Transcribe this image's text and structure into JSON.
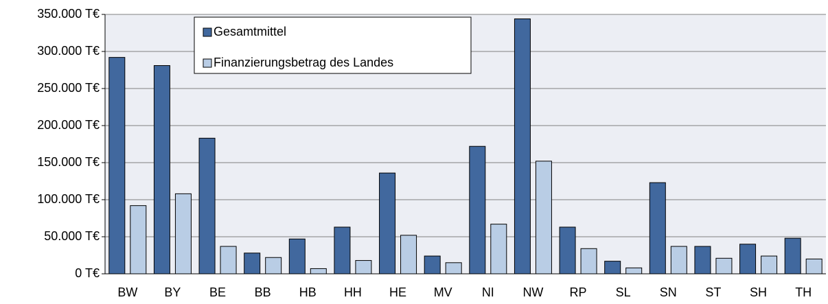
{
  "chart_data": {
    "type": "bar",
    "categories": [
      "BW",
      "BY",
      "BE",
      "BB",
      "HB",
      "HH",
      "HE",
      "MV",
      "NI",
      "NW",
      "RP",
      "SL",
      "SN",
      "ST",
      "SH",
      "TH"
    ],
    "series": [
      {
        "name": "Gesamtmittel",
        "color": "#41689e",
        "values": [
          292000,
          281000,
          183000,
          28000,
          47000,
          63000,
          136000,
          24000,
          172000,
          344000,
          63000,
          17000,
          123000,
          37000,
          40000,
          48000
        ]
      },
      {
        "name": "Finanzierungsbetrag des Landes",
        "color": "#b9cde5",
        "values": [
          92000,
          108000,
          37000,
          22000,
          7000,
          18000,
          52000,
          15000,
          67000,
          152000,
          34000,
          8000,
          37000,
          21000,
          24000,
          20000
        ]
      }
    ],
    "ylim": [
      0,
      350000
    ],
    "yticks": [
      {
        "value": 0,
        "label": "0 T€"
      },
      {
        "value": 50000,
        "label": "50.000 T€"
      },
      {
        "value": 100000,
        "label": "100.000 T€"
      },
      {
        "value": 150000,
        "label": "150.000 T€"
      },
      {
        "value": 200000,
        "label": "200.000 T€"
      },
      {
        "value": 250000,
        "label": "250.000 T€"
      },
      {
        "value": 300000,
        "label": "300.000 T€"
      },
      {
        "value": 350000,
        "label": "350.000 T€"
      }
    ],
    "grid": true,
    "legend": "top-left"
  }
}
